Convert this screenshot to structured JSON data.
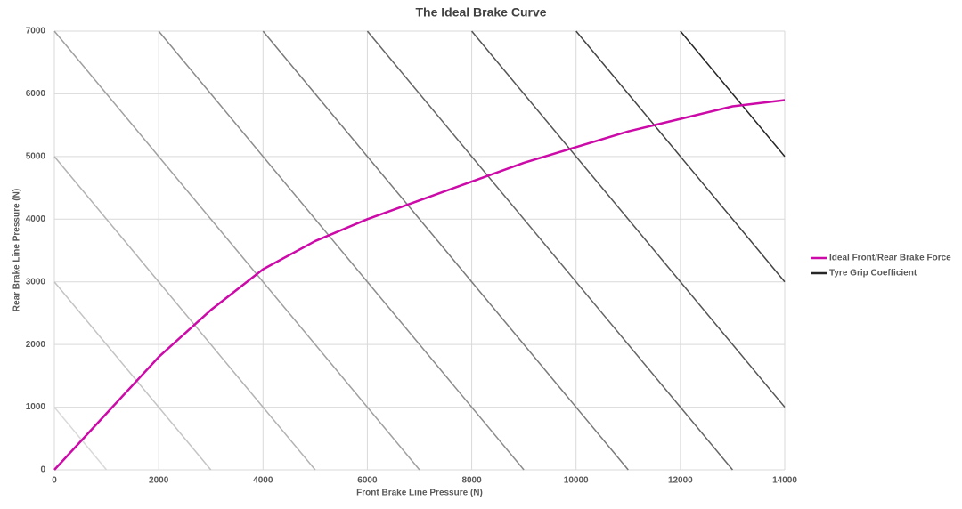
{
  "chart_data": {
    "type": "line",
    "title": "The Ideal Brake Curve",
    "x_label": "Front Brake Line Pressure (N)",
    "y_label": "Rear Brake Line Pressure (N)",
    "xlim": [
      0,
      14000
    ],
    "ylim": [
      0,
      7000
    ],
    "xticks": [
      0,
      2000,
      4000,
      6000,
      8000,
      10000,
      12000,
      14000
    ],
    "yticks": [
      0,
      1000,
      2000,
      3000,
      4000,
      5000,
      6000,
      7000
    ],
    "grid": true,
    "legend": "right",
    "series": [
      {
        "name": "Ideal Front/Rear Brake Force",
        "color": "#cc0aa8",
        "x": [
          0,
          1000,
          2000,
          3000,
          4000,
          5000,
          6000,
          7000,
          8000,
          9000,
          10000,
          11000,
          12000,
          13000,
          14000
        ],
        "values": [
          0,
          900,
          1800,
          2550,
          3200,
          3650,
          4000,
          4300,
          4600,
          4900,
          5150,
          5400,
          5600,
          5800,
          5900
        ]
      },
      {
        "name": "Tyre Grip Coefficient",
        "color": "#262626",
        "segments": [
          {
            "color": "#d9d9d9",
            "x": [
              0,
              1000
            ],
            "values": [
              1000,
              0
            ]
          },
          {
            "color": "#c4c4c4",
            "x": [
              0,
              3000
            ],
            "values": [
              3000,
              0
            ]
          },
          {
            "color": "#b3b3b3",
            "x": [
              0,
              5000
            ],
            "values": [
              5000,
              0
            ]
          },
          {
            "color": "#a0a0a0",
            "x": [
              0,
              7000
            ],
            "values": [
              7000,
              0
            ]
          },
          {
            "color": "#8c8c8c",
            "x": [
              2000,
              9000
            ],
            "values": [
              7000,
              0
            ]
          },
          {
            "color": "#7a7a7a",
            "x": [
              4000,
              11000
            ],
            "values": [
              7000,
              0
            ]
          },
          {
            "color": "#666666",
            "x": [
              6000,
              13000
            ],
            "values": [
              7000,
              0
            ]
          },
          {
            "color": "#555555",
            "x": [
              8000,
              14000
            ],
            "values": [
              7000,
              1000
            ]
          },
          {
            "color": "#444444",
            "x": [
              10000,
              14000
            ],
            "values": [
              7000,
              3000
            ]
          },
          {
            "color": "#262626",
            "x": [
              12000,
              14000
            ],
            "values": [
              7000,
              5000
            ]
          }
        ]
      }
    ]
  }
}
